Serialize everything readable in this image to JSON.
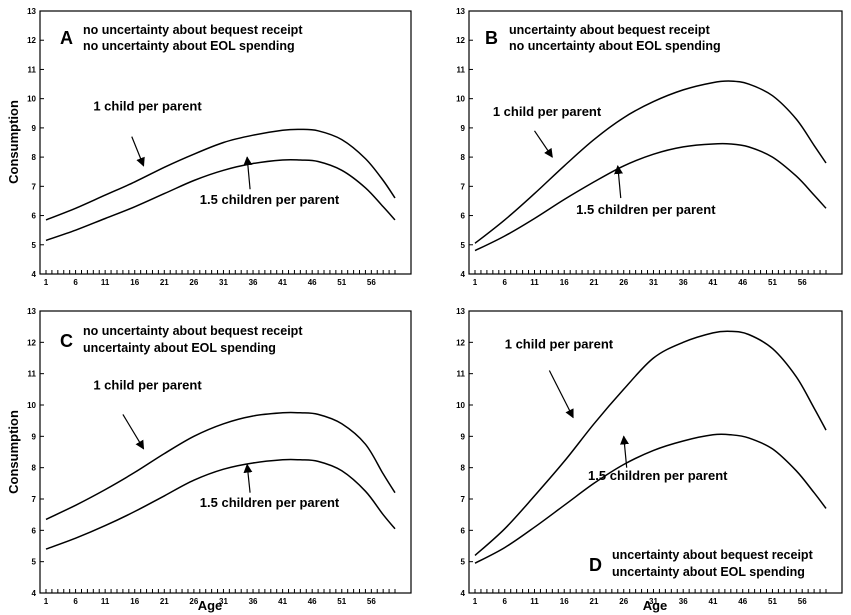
{
  "chart_data": [
    {
      "type": "line",
      "panel": "A",
      "title_lines": [
        "no uncertainty about bequest receipt",
        "no uncertainty about EOL spending"
      ],
      "xlabel": "",
      "ylabel": "Consumption",
      "xlim": [
        1,
        60
      ],
      "ylim": [
        4,
        13
      ],
      "x_ticks": [
        1,
        6,
        11,
        16,
        21,
        26,
        31,
        36,
        41,
        46,
        51,
        56
      ],
      "y_ticks": [
        4,
        5,
        6,
        7,
        8,
        9,
        10,
        11,
        12,
        13
      ],
      "series": [
        {
          "x": [
            1,
            6,
            11,
            16,
            21,
            26,
            31,
            36,
            41,
            44,
            47,
            51,
            55,
            58,
            60
          ],
          "y": [
            5.85,
            6.25,
            6.7,
            7.15,
            7.65,
            8.1,
            8.5,
            8.75,
            8.92,
            8.95,
            8.9,
            8.6,
            7.95,
            7.2,
            6.6
          ]
        },
        {
          "x": [
            1,
            6,
            11,
            16,
            21,
            26,
            31,
            36,
            41,
            44,
            47,
            51,
            55,
            58,
            60
          ],
          "y": [
            5.15,
            5.5,
            5.9,
            6.3,
            6.75,
            7.2,
            7.55,
            7.78,
            7.9,
            7.9,
            7.85,
            7.55,
            6.95,
            6.3,
            5.85
          ]
        }
      ],
      "annotations": [
        {
          "text": "1 child per parent",
          "x": 9,
          "y": 9.6,
          "arrow_from": [
            15.5,
            8.7
          ],
          "arrow_to": [
            17.5,
            7.7
          ]
        },
        {
          "text": "1.5 children per parent",
          "x": 27,
          "y": 6.4,
          "arrow_from": [
            35.5,
            6.9
          ],
          "arrow_to": [
            35,
            8.0
          ]
        }
      ]
    },
    {
      "type": "line",
      "panel": "B",
      "title_lines": [
        "uncertainty about bequest receipt",
        "no uncertainty about EOL spending"
      ],
      "xlabel": "",
      "ylabel": "",
      "xlim": [
        1,
        60
      ],
      "ylim": [
        4,
        13
      ],
      "x_ticks": [
        1,
        6,
        11,
        16,
        21,
        26,
        31,
        36,
        41,
        46,
        51,
        56
      ],
      "y_ticks": [
        4,
        5,
        6,
        7,
        8,
        9,
        10,
        11,
        12,
        13
      ],
      "series": [
        {
          "x": [
            1,
            6,
            11,
            16,
            21,
            26,
            31,
            36,
            41,
            44,
            47,
            51,
            55,
            58,
            60
          ],
          "y": [
            5.05,
            5.85,
            6.75,
            7.7,
            8.6,
            9.35,
            9.9,
            10.3,
            10.55,
            10.6,
            10.5,
            10.1,
            9.3,
            8.4,
            7.8
          ]
        },
        {
          "x": [
            1,
            6,
            11,
            16,
            21,
            26,
            31,
            36,
            41,
            44,
            47,
            51,
            55,
            58,
            60
          ],
          "y": [
            4.8,
            5.3,
            5.9,
            6.55,
            7.15,
            7.7,
            8.1,
            8.35,
            8.45,
            8.45,
            8.35,
            8.0,
            7.35,
            6.7,
            6.25
          ]
        }
      ],
      "annotations": [
        {
          "text": "1 child per parent",
          "x": 4,
          "y": 9.4,
          "arrow_from": [
            11,
            8.9
          ],
          "arrow_to": [
            14,
            8.0
          ]
        },
        {
          "text": "1.5 children per parent",
          "x": 18,
          "y": 6.05,
          "arrow_from": [
            25.5,
            6.6
          ],
          "arrow_to": [
            25,
            7.7
          ]
        }
      ]
    },
    {
      "type": "line",
      "panel": "C",
      "title_lines": [
        "no uncertainty about bequest receipt",
        "uncertainty about EOL spending"
      ],
      "xlabel": "Age",
      "ylabel": "Consumption",
      "xlim": [
        1,
        60
      ],
      "ylim": [
        4,
        13
      ],
      "x_ticks": [
        1,
        6,
        11,
        16,
        21,
        26,
        31,
        36,
        41,
        46,
        51,
        56
      ],
      "y_ticks": [
        4,
        5,
        6,
        7,
        8,
        9,
        10,
        11,
        12,
        13
      ],
      "series": [
        {
          "x": [
            1,
            6,
            11,
            16,
            21,
            26,
            31,
            36,
            41,
            44,
            47,
            51,
            55,
            58,
            60
          ],
          "y": [
            6.35,
            6.8,
            7.3,
            7.85,
            8.45,
            9.0,
            9.4,
            9.65,
            9.75,
            9.75,
            9.7,
            9.4,
            8.75,
            7.8,
            7.2
          ]
        },
        {
          "x": [
            1,
            6,
            11,
            16,
            21,
            26,
            31,
            36,
            41,
            44,
            47,
            51,
            55,
            58,
            60
          ],
          "y": [
            5.4,
            5.75,
            6.15,
            6.6,
            7.1,
            7.6,
            7.95,
            8.15,
            8.25,
            8.25,
            8.2,
            7.9,
            7.25,
            6.5,
            6.05
          ]
        }
      ],
      "annotations": [
        {
          "text": "1 child per parent",
          "x": 9,
          "y": 10.5,
          "arrow_from": [
            14,
            9.7
          ],
          "arrow_to": [
            17.5,
            8.6
          ]
        },
        {
          "text": "1.5 children per parent",
          "x": 27,
          "y": 6.75,
          "arrow_from": [
            35.5,
            7.2
          ],
          "arrow_to": [
            35,
            8.1
          ]
        }
      ]
    },
    {
      "type": "line",
      "panel": "D",
      "title_lines": [
        "uncertainty about bequest receipt",
        "uncertainty about EOL spending"
      ],
      "xlabel": "Age",
      "ylabel": "",
      "xlim": [
        1,
        60
      ],
      "ylim": [
        4,
        13
      ],
      "x_ticks": [
        1,
        6,
        11,
        16,
        21,
        26,
        31,
        36,
        41,
        46,
        51,
        56
      ],
      "y_ticks": [
        4,
        5,
        6,
        7,
        8,
        9,
        10,
        11,
        12,
        13
      ],
      "series": [
        {
          "x": [
            1,
            6,
            11,
            16,
            21,
            26,
            31,
            36,
            41,
            44,
            47,
            51,
            55,
            58,
            60
          ],
          "y": [
            5.2,
            6.05,
            7.1,
            8.2,
            9.4,
            10.5,
            11.5,
            12.0,
            12.3,
            12.35,
            12.25,
            11.8,
            10.9,
            9.9,
            9.2
          ]
        },
        {
          "x": [
            1,
            6,
            11,
            16,
            21,
            26,
            31,
            36,
            41,
            44,
            47,
            51,
            55,
            58,
            60
          ],
          "y": [
            4.95,
            5.45,
            6.1,
            6.8,
            7.5,
            8.1,
            8.55,
            8.85,
            9.05,
            9.05,
            8.95,
            8.6,
            7.9,
            7.2,
            6.7
          ]
        }
      ],
      "annotations": [
        {
          "text": "1 child per parent",
          "x": 6,
          "y": 11.8,
          "arrow_from": [
            13.5,
            11.1
          ],
          "arrow_to": [
            17.5,
            9.6
          ]
        },
        {
          "text": "1.5 children per parent",
          "x": 20,
          "y": 7.6,
          "arrow_from": [
            26.5,
            8.0
          ],
          "arrow_to": [
            26,
            9.0
          ]
        }
      ]
    }
  ]
}
